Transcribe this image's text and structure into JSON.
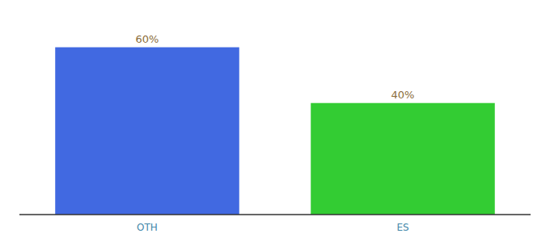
{
  "chart_data": {
    "type": "bar",
    "categories": [
      "OTH",
      "ES"
    ],
    "values": [
      60,
      40
    ],
    "value_labels": [
      "60%",
      "40%"
    ],
    "colors": [
      "#4169e1",
      "#33cc33"
    ],
    "ylim": [
      0,
      70
    ],
    "data_labels": true,
    "tick_labels": "x",
    "grid": false
  }
}
